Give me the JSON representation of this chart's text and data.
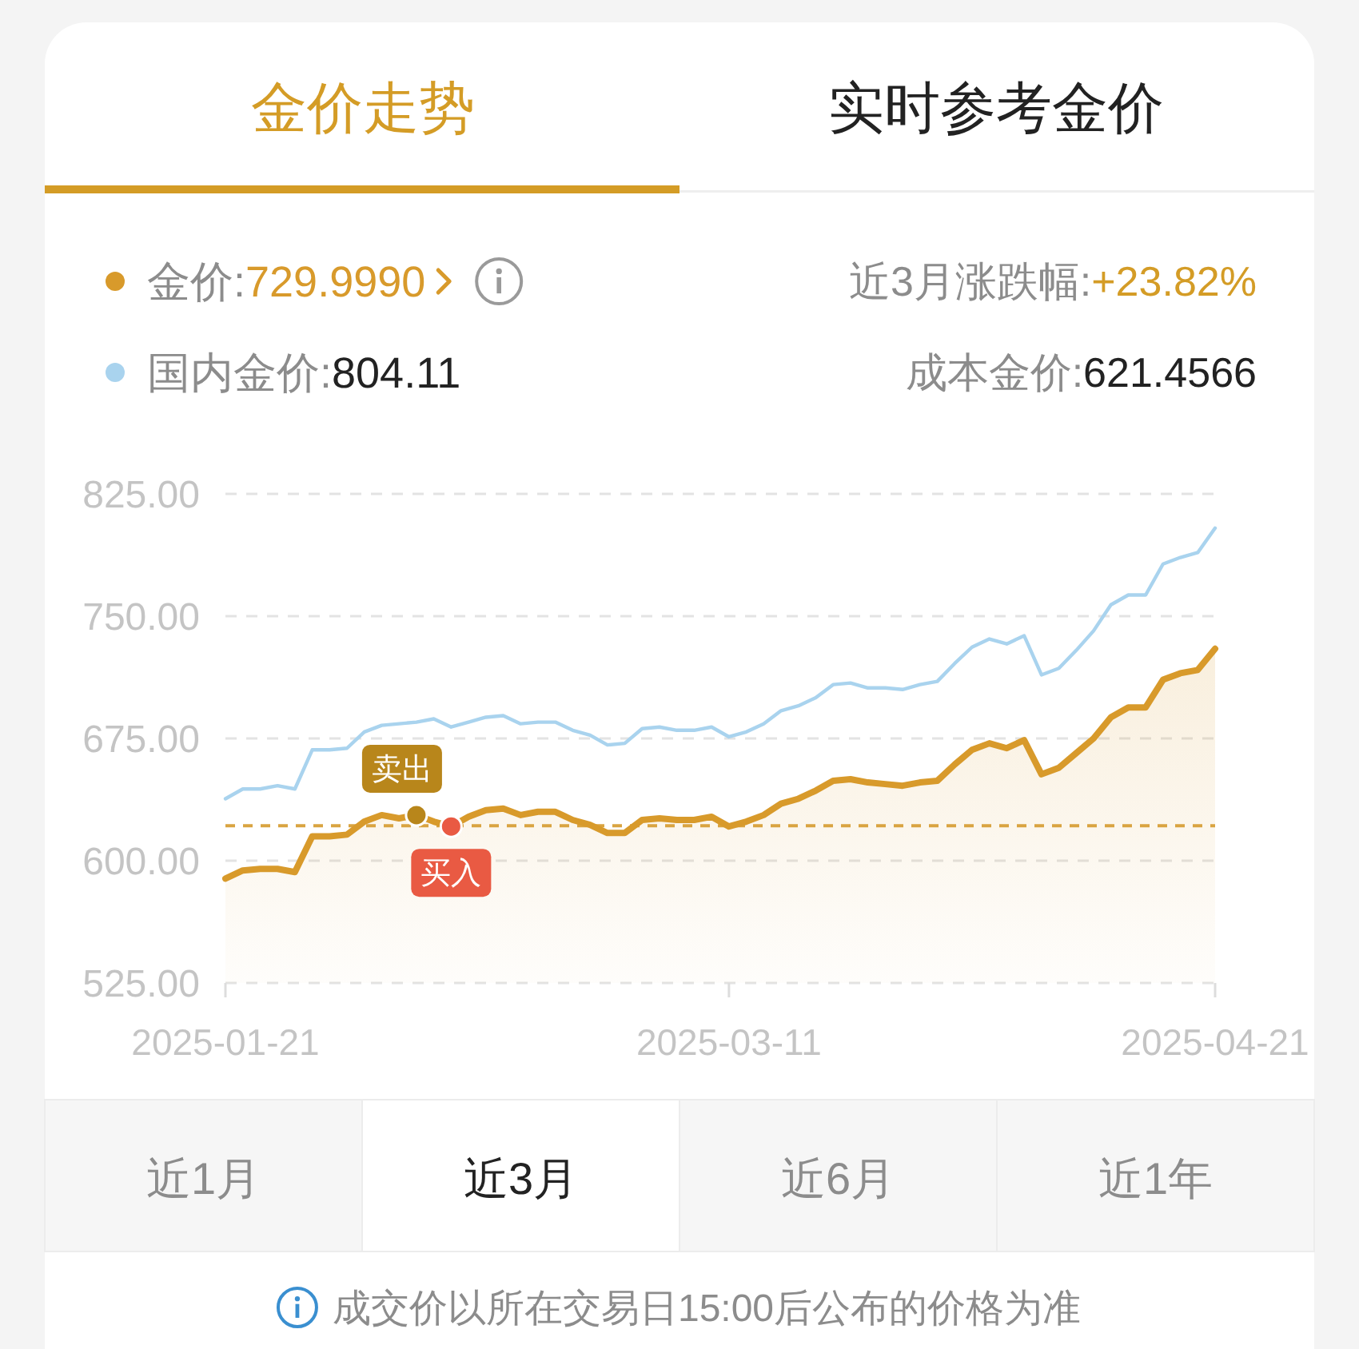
{
  "chart_data": {
    "type": "line",
    "title": "金价走势",
    "categories": [
      "2025-01-21",
      null,
      null,
      null,
      null,
      null,
      null,
      null,
      null,
      null,
      null,
      null,
      null,
      null,
      null,
      null,
      null,
      null,
      null,
      null,
      null,
      null,
      null,
      null,
      null,
      null,
      null,
      null,
      null,
      "2025-03-11",
      null,
      null,
      null,
      null,
      null,
      null,
      null,
      null,
      null,
      null,
      null,
      null,
      null,
      null,
      null,
      null,
      null,
      null,
      null,
      null,
      null,
      null,
      null,
      null,
      null,
      null,
      null,
      "2025-04-21"
    ],
    "series": [
      {
        "name": "金价:729.9990",
        "type": "area",
        "color": "#d89a2b",
        "values": [
          589,
          594,
          595,
          595,
          593,
          615,
          615,
          616,
          624,
          628,
          626,
          628,
          624,
          621,
          627,
          631,
          632,
          628,
          630,
          630,
          625,
          622,
          617,
          617,
          625,
          626,
          625,
          625,
          627,
          621,
          624,
          628,
          635,
          638,
          643,
          649,
          650,
          648,
          647,
          646,
          648,
          649,
          659,
          668,
          672,
          669,
          674,
          653,
          657,
          666,
          675,
          688,
          694,
          694,
          711,
          715,
          717,
          730
        ]
      },
      {
        "name": "国内金价:804.11",
        "color": "#a9d3ee",
        "values": [
          638,
          644,
          644,
          646,
          644,
          668,
          668,
          669,
          679,
          683,
          684,
          685,
          687,
          682,
          685,
          688,
          689,
          684,
          685,
          685,
          680,
          677,
          671,
          672,
          681,
          682,
          680,
          680,
          682,
          676,
          679,
          684,
          692,
          695,
          700,
          708,
          709,
          706,
          706,
          705,
          708,
          710,
          721,
          731,
          736,
          733,
          738,
          714,
          718,
          729,
          741,
          757,
          763,
          763,
          782,
          786,
          789,
          804
        ]
      },
      {
        "name": "卖出",
        "type": "scatter",
        "marker": "circle",
        "color": "#b8861b",
        "values": [
          null,
          null,
          null,
          null,
          null,
          null,
          null,
          null,
          null,
          null,
          null,
          628,
          null,
          null,
          null,
          null,
          null,
          null,
          null,
          null,
          null,
          null,
          null,
          null,
          null,
          null,
          null,
          null,
          null,
          null,
          null,
          null,
          null,
          null,
          null,
          null,
          null,
          null,
          null,
          null,
          null,
          null,
          null,
          null,
          null,
          null,
          null,
          null,
          null,
          null,
          null,
          null,
          null,
          null,
          null,
          null,
          null,
          null
        ]
      },
      {
        "name": "买入",
        "type": "scatter",
        "marker": "circle",
        "color": "#e95a43",
        "values": [
          null,
          null,
          null,
          null,
          null,
          null,
          null,
          null,
          null,
          null,
          null,
          null,
          null,
          621,
          null,
          null,
          null,
          null,
          null,
          null,
          null,
          null,
          null,
          null,
          null,
          null,
          null,
          null,
          null,
          null,
          null,
          null,
          null,
          null,
          null,
          null,
          null,
          null,
          null,
          null,
          null,
          null,
          null,
          null,
          null,
          null,
          null,
          null,
          null,
          null,
          null,
          null,
          null,
          null,
          null,
          null,
          null,
          null
        ]
      }
    ],
    "ylim": [
      525,
      825
    ],
    "yticks": [
      {
        "value": 525,
        "label": "525.00"
      },
      {
        "value": 600,
        "label": "600.00"
      },
      {
        "value": 675,
        "label": "675.00"
      },
      {
        "value": 750,
        "label": "750.00"
      },
      {
        "value": 825,
        "label": "825.00"
      }
    ],
    "grid": "y",
    "legend": "top left",
    "ref_lines": [
      {
        "axis": "y",
        "value": 621.4566,
        "color": "#d9a441",
        "line_style": "dashed"
      }
    ],
    "annotations": [
      "实时参考金价",
      "近3月涨跌幅:+23.82%",
      "成本金价:621.4566",
      "近1月",
      "近3月",
      "近6月",
      "近1年",
      "成交价以所在交易日15:00后公布的价格为准"
    ]
  }
}
